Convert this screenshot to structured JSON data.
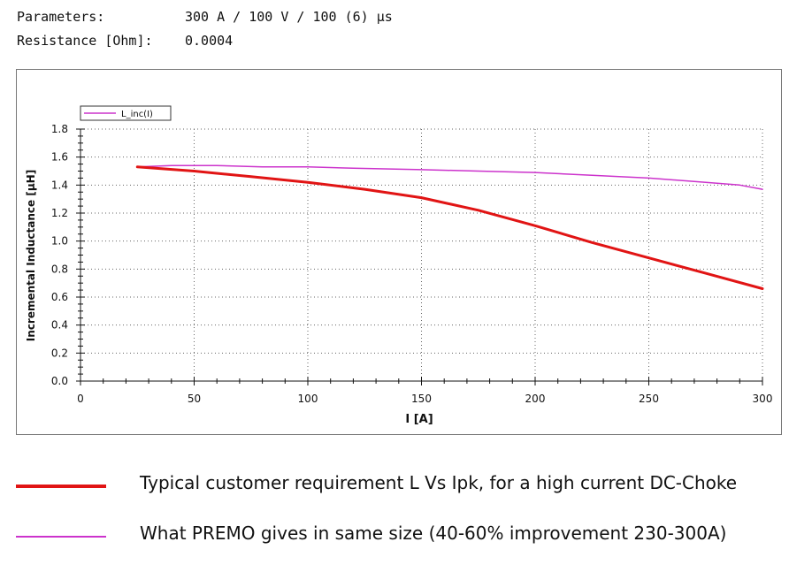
{
  "header": {
    "parameters_label": "Parameters:",
    "parameters_value": "300 A / 100 V / 100 (6) μs",
    "resistance_label": "Resistance [Ohm]:",
    "resistance_value": "0.0004"
  },
  "chart_data": {
    "type": "line",
    "xlabel": "I [A]",
    "ylabel": "Incremental Inductance [µH]",
    "xlim": [
      0,
      300
    ],
    "ylim": [
      0,
      1.8
    ],
    "xticks": [
      0,
      50,
      100,
      150,
      200,
      250,
      300
    ],
    "yticks": [
      0.0,
      0.2,
      0.4,
      0.6,
      0.8,
      1.0,
      1.2,
      1.4,
      1.6,
      1.8
    ],
    "ytick_labels": [
      "0.0",
      "0.2",
      "0.4",
      "0.6",
      "0.8",
      "1.0",
      "1.2",
      "1.4",
      "1.6",
      "1.8"
    ],
    "grid": true,
    "legend": {
      "position": "top-left",
      "entries": [
        "L_inc(I)"
      ]
    },
    "series": [
      {
        "name": "L_inc(I)",
        "color": "#cc33cc",
        "x": [
          25,
          40,
          60,
          80,
          100,
          120,
          150,
          175,
          200,
          225,
          250,
          275,
          290,
          300
        ],
        "y": [
          1.53,
          1.54,
          1.54,
          1.53,
          1.53,
          1.52,
          1.51,
          1.5,
          1.49,
          1.47,
          1.45,
          1.42,
          1.4,
          1.37
        ]
      },
      {
        "color": "#e11414",
        "x": [
          25,
          50,
          75,
          100,
          125,
          150,
          175,
          200,
          225,
          250,
          275,
          300
        ],
        "y": [
          1.53,
          1.5,
          1.46,
          1.42,
          1.37,
          1.31,
          1.22,
          1.11,
          0.99,
          0.88,
          0.77,
          0.66
        ]
      }
    ]
  },
  "legend_notes": [
    {
      "color": "#e11414",
      "text": "Typical customer requirement L Vs Ipk, for a high current DC-Choke"
    },
    {
      "color": "#cc33cc",
      "text": "What PREMO gives in same size (40-60% improvement 230-300A)"
    }
  ]
}
